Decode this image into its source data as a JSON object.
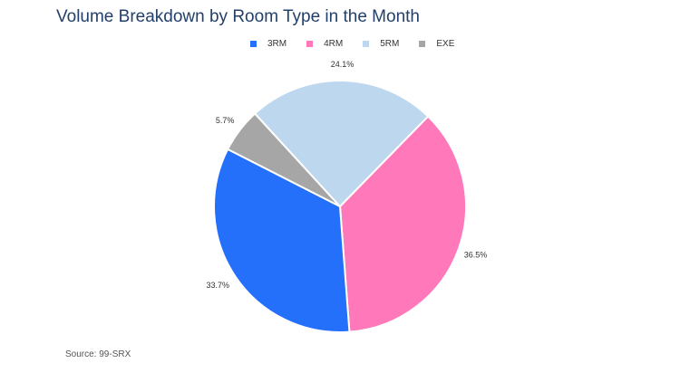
{
  "chart_data": {
    "type": "pie",
    "title": "Volume Breakdown by Room Type in the Month",
    "legend_position": "top",
    "categories": [
      "3RM",
      "4RM",
      "5RM",
      "EXE"
    ],
    "values": [
      33.7,
      36.5,
      24.1,
      5.7
    ],
    "labels": [
      "33.7%",
      "36.5%",
      "24.1%",
      "5.7%"
    ],
    "colors": [
      "#2570fb",
      "#fe78ba",
      "#bdd7ee",
      "#a6a6a6"
    ]
  },
  "source": "Source: 99-SRX"
}
